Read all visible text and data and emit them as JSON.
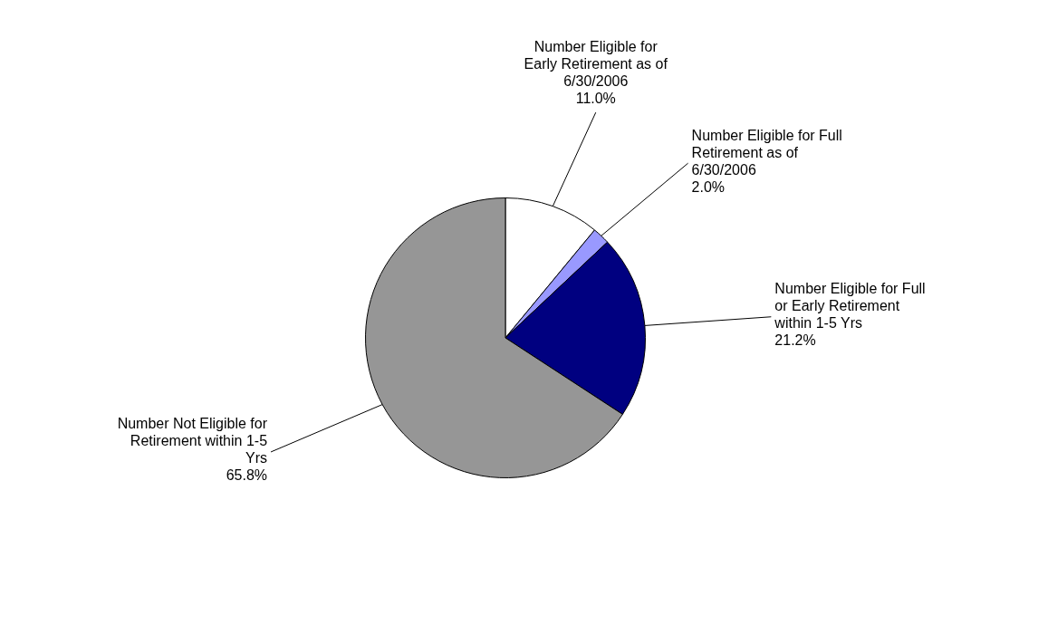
{
  "chart_data": {
    "type": "pie",
    "categories": [
      "Number Eligible for Early Retirement as of 6/30/2006",
      "Number Eligible for Full Retirement as of 6/30/2006",
      "Number Eligible for Full or Early Retirement within 1-5 Yrs",
      "Number Not Eligible for Retirement within 1-5 Yrs"
    ],
    "values": [
      11.0,
      2.0,
      21.2,
      65.8
    ],
    "value_labels": [
      "11.0%",
      "2.0%",
      "21.2%",
      "65.8%"
    ],
    "colors": [
      "#ffffff",
      "#9999ff",
      "#000080",
      "#969696"
    ],
    "legend": false
  }
}
